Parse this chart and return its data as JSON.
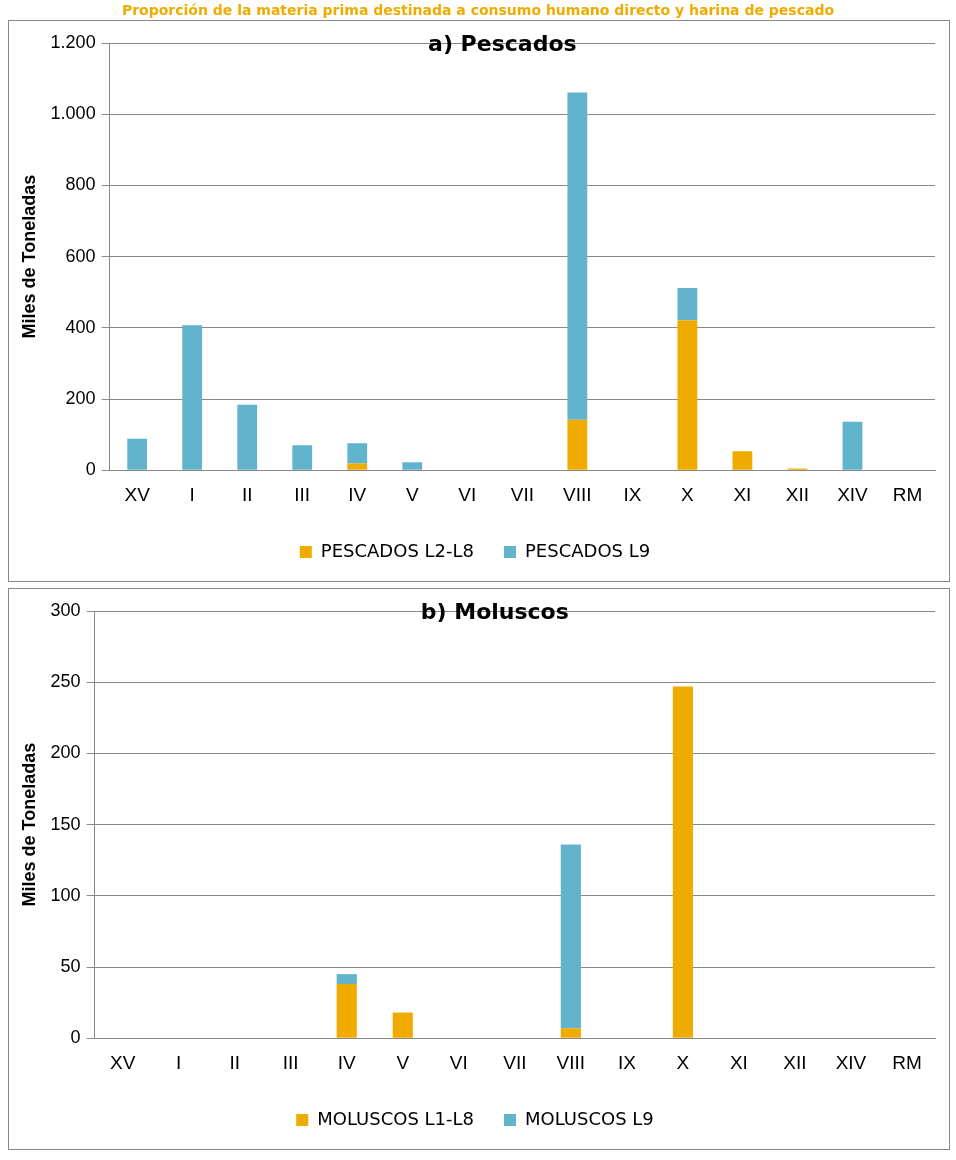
{
  "chart_data": [
    {
      "type": "bar",
      "title": "a) Pescados",
      "ylabel": "Miles de Toneladas",
      "annotations": [
        "Proporción de la materia prima destinada a consumo humano directo y harina de pescado"
      ],
      "categories": [
        "XV",
        "I",
        "II",
        "III",
        "IV",
        "V",
        "VI",
        "VII",
        "VIII",
        "IX",
        "X",
        "XI",
        "XII",
        "XIV",
        "RM"
      ],
      "stacked": true,
      "ylim": [
        0,
        1200
      ],
      "yticks": [
        0,
        200,
        400,
        600,
        800,
        {
          "value": 1000,
          "label": "1.000"
        },
        {
          "value": 1200,
          "label": "1.200"
        }
      ],
      "grid": "y",
      "legend": "bottom",
      "series": [
        {
          "name": "PESCADOS L2-L8",
          "color": "#f0ab00",
          "values": [
            0,
            0,
            0,
            0,
            19,
            0,
            0,
            0,
            142,
            0,
            421,
            53,
            5,
            0,
            0
          ]
        },
        {
          "name": "PESCADOS L9",
          "color": "#62b4cc",
          "values": [
            88,
            407,
            184,
            70,
            57,
            22,
            0,
            0,
            919,
            0,
            91,
            0,
            0,
            136,
            0
          ]
        }
      ]
    },
    {
      "type": "bar",
      "title": "b) Moluscos",
      "ylabel": "Miles de Toneladas",
      "categories": [
        "XV",
        "I",
        "II",
        "III",
        "IV",
        "V",
        "VI",
        "VII",
        "VIII",
        "IX",
        "X",
        "XI",
        "XII",
        "XIV",
        "RM"
      ],
      "stacked": true,
      "ylim": [
        0,
        300
      ],
      "yticks": [
        0,
        50,
        100,
        150,
        200,
        250,
        300
      ],
      "grid": "y",
      "legend": "bottom",
      "series": [
        {
          "name": "MOLUSCOS L1-L8",
          "color": "#f0ab00",
          "values": [
            0,
            0,
            0,
            0,
            38,
            18,
            0,
            0,
            7,
            0,
            247,
            0,
            0,
            0,
            0
          ]
        },
        {
          "name": "MOLUSCOS L9",
          "color": "#62b4cc",
          "values": [
            0,
            0,
            0,
            0,
            7,
            0,
            0,
            0,
            129,
            0,
            0,
            0,
            0,
            0,
            0
          ]
        }
      ]
    }
  ]
}
